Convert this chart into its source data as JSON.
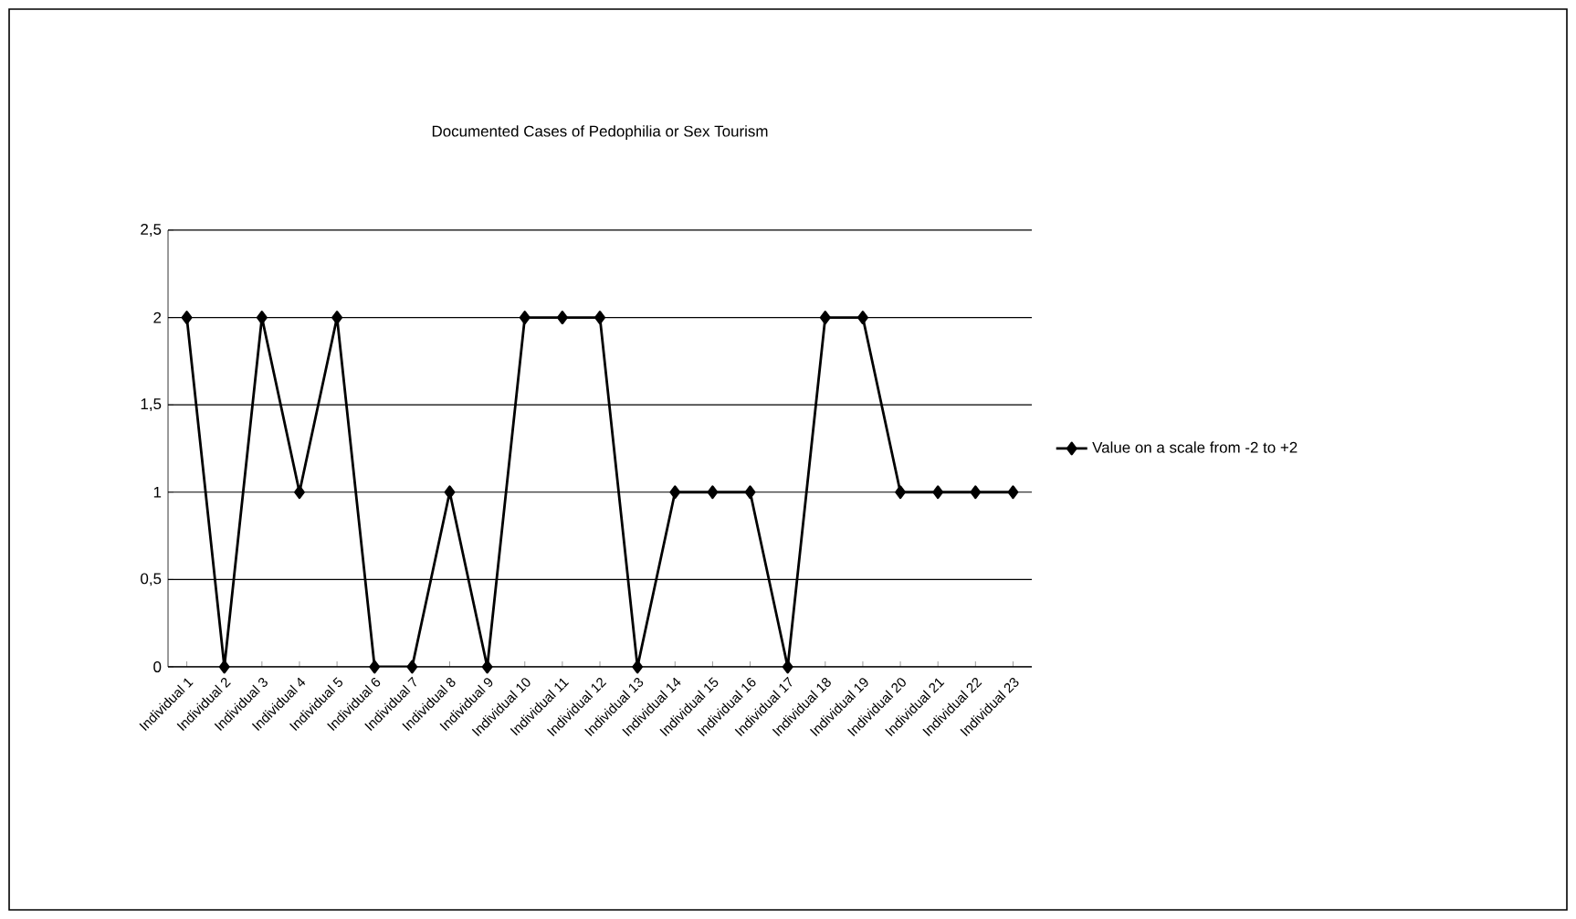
{
  "chart_data": {
    "type": "line",
    "title": "Documented Cases of Pedophilia or Sex Tourism",
    "categories": [
      "Individual 1",
      "Individual 2",
      "Individual 3",
      "Individual 4",
      "Individual 5",
      "Individual 6",
      "Individual 7",
      "Individual 8",
      "Individual 9",
      "Individual 10",
      "Individual 11",
      "Individual 12",
      "Individual 13",
      "Individual 14",
      "Individual 15",
      "Individual 16",
      "Individual 17",
      "Individual 18",
      "Individual 19",
      "Individual 20",
      "Individual 21",
      "Individual 22",
      "Individual 23"
    ],
    "series": [
      {
        "name": "Value on a scale from -2 to +2",
        "color": "#000000",
        "values": [
          2,
          0,
          2,
          1,
          2,
          0,
          0,
          1,
          0,
          2,
          2,
          2,
          0,
          1,
          1,
          1,
          0,
          2,
          2,
          1,
          1,
          1,
          1
        ]
      }
    ],
    "ylim": [
      0,
      2.5
    ],
    "yticks": [
      0,
      {
        "value": 0.5,
        "label": "0,5"
      },
      1,
      {
        "value": 1.5,
        "label": "1,5"
      },
      2,
      {
        "value": 2.5,
        "label": "2,5"
      }
    ],
    "grid": "y",
    "legend": "right",
    "marker": "diamond",
    "line_style": "solid"
  }
}
